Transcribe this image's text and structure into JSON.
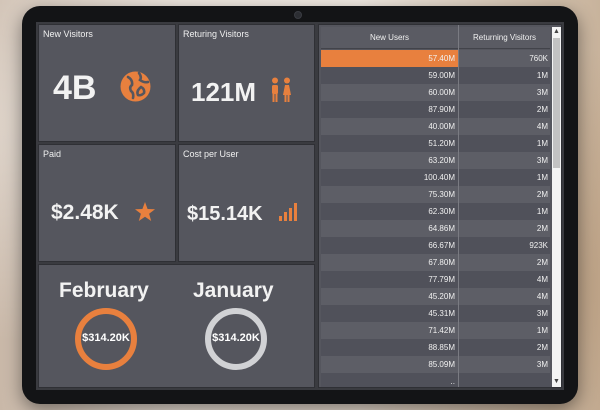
{
  "colors": {
    "accent": "#e8803e",
    "tile": "#55565e",
    "ring_alt": "#cfd0d3"
  },
  "tiles": {
    "new_visitors": {
      "label": "New Visitors",
      "value": "4B",
      "icon": "globe-icon"
    },
    "returning_visitors": {
      "label": "Returing Visitors",
      "value": "121M",
      "icon": "people-icon"
    },
    "paid": {
      "label": "Paid",
      "value": "$2.48K",
      "icon": "star-icon"
    },
    "cost_per_user": {
      "label": "Cost per User",
      "value": "$15.14K",
      "icon": "signal-bars-icon"
    }
  },
  "months": {
    "left": {
      "name": "February",
      "value": "$314.20K"
    },
    "right": {
      "name": "January",
      "value": "$314.20K"
    }
  },
  "table": {
    "headers": [
      "New Users",
      "Returning Visitors"
    ],
    "rows": [
      [
        "57.40M",
        "760K"
      ],
      [
        "59.00M",
        "1M"
      ],
      [
        "60.00M",
        "3M"
      ],
      [
        "87.90M",
        "2M"
      ],
      [
        "40.00M",
        "4M"
      ],
      [
        "51.20M",
        "1M"
      ],
      [
        "63.20M",
        "3M"
      ],
      [
        "100.40M",
        "1M"
      ],
      [
        "75.30M",
        "2M"
      ],
      [
        "62.30M",
        "1M"
      ],
      [
        "64.86M",
        "2M"
      ],
      [
        "66.67M",
        "923K"
      ],
      [
        "67.80M",
        "2M"
      ],
      [
        "77.79M",
        "4M"
      ],
      [
        "45.20M",
        "4M"
      ],
      [
        "45.31M",
        "3M"
      ],
      [
        "71.42M",
        "1M"
      ],
      [
        "88.85M",
        "2M"
      ],
      [
        "85.09M",
        "3M"
      ],
      [
        "..",
        ""
      ]
    ]
  }
}
